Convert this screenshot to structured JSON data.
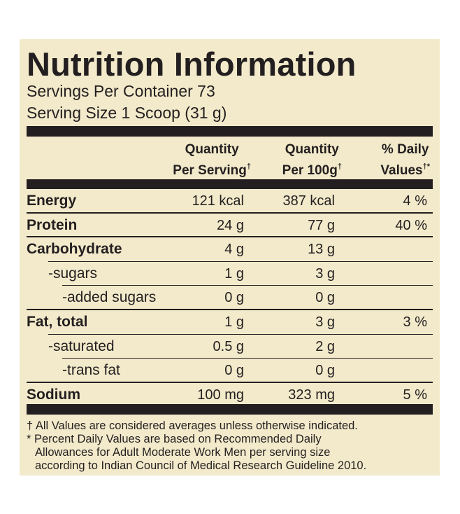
{
  "label": {
    "title": "Nutrition Information",
    "servings_per_container": "Servings Per Container 73",
    "serving_size": "Serving Size 1 Scoop (31 g)"
  },
  "columns": {
    "per_serving": {
      "line1": "Quantity",
      "line2": "Per Serving",
      "mark": "†"
    },
    "per_100g": {
      "line1": "Quantity",
      "line2": "Per 100g",
      "mark": "†"
    },
    "daily_values": {
      "line1": "% Daily",
      "line2": "Values",
      "mark": "†*"
    }
  },
  "rows": [
    {
      "name": "Energy",
      "per_serving": "121 kcal",
      "per_100g": "387 kcal",
      "daily_value": "4 %"
    },
    {
      "name": "Protein",
      "per_serving": "24 g",
      "per_100g": "77 g",
      "daily_value": "40 %"
    },
    {
      "name": "Carbohydrate",
      "per_serving": "4 g",
      "per_100g": "13 g",
      "daily_value": ""
    },
    {
      "name": "-sugars",
      "per_serving": "1 g",
      "per_100g": "3 g",
      "daily_value": ""
    },
    {
      "name": "-added sugars",
      "per_serving": "0 g",
      "per_100g": "0 g",
      "daily_value": ""
    },
    {
      "name": "Fat, total",
      "per_serving": "1 g",
      "per_100g": "3 g",
      "daily_value": "3 %"
    },
    {
      "name": "-saturated",
      "per_serving": "0.5 g",
      "per_100g": "2 g",
      "daily_value": ""
    },
    {
      "name": "-trans fat",
      "per_serving": "0 g",
      "per_100g": "0 g",
      "daily_value": ""
    },
    {
      "name": "Sodium",
      "per_serving": "100 mg",
      "per_100g": "323 mg",
      "daily_value": "5 %"
    }
  ],
  "footnotes": {
    "dagger": "† All Values are considered averages unless otherwise indicated.",
    "star_line1": "* Percent Daily Values are based on Recommended Daily",
    "star_line2": "Allowances for Adult Moderate Work Men per serving size",
    "star_line3": "according to Indian Council of Medical Research Guideline 2010."
  },
  "colors": {
    "panel_background": "#f3eacb",
    "ink": "#231f20"
  }
}
